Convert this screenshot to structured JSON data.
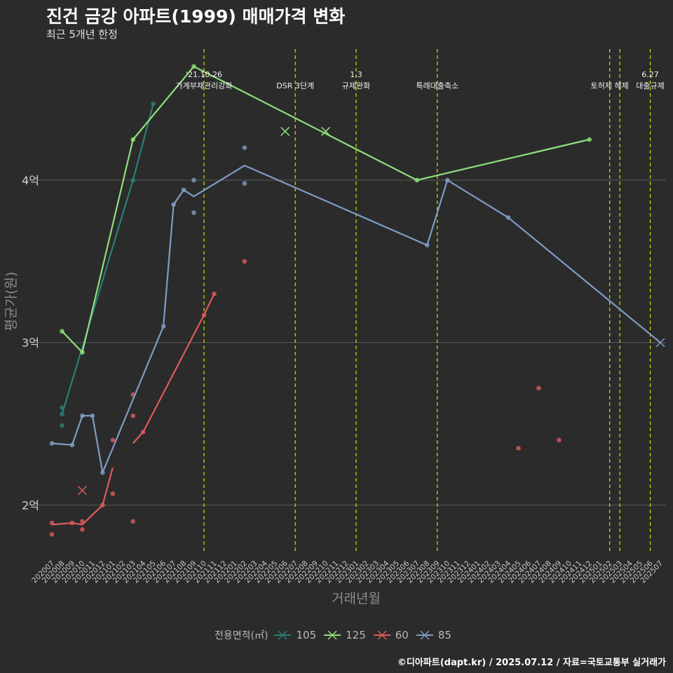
{
  "title": "진건 금강 아파트(1999) 매매가격 변화",
  "subtitle": "최근 5개년 한정",
  "caption": "©디아파트(dapt.kr) / 2025.07.12 / 자료=국토교통부 실거래가",
  "colors": {
    "background": "#2b2b2b",
    "grid": "#5a5a5a",
    "vline": "#d4e000",
    "105": "#2a7f77",
    "125": "#8fdf7a",
    "60": "#e05a5a",
    "85": "#7f9cc4"
  },
  "chart_data": {
    "type": "line",
    "xlabel": "거래년월",
    "ylabel": "평균가(원)",
    "ylim": [
      1.7,
      4.85
    ],
    "yticks": [
      {
        "v": 2,
        "label": "2억"
      },
      {
        "v": 3,
        "label": "3억"
      },
      {
        "v": 4,
        "label": "4억"
      }
    ],
    "months": [
      "202007",
      "202008",
      "202009",
      "202010",
      "202011",
      "202012",
      "202101",
      "202102",
      "202103",
      "202104",
      "202105",
      "202106",
      "202107",
      "202108",
      "202109",
      "202110",
      "202111",
      "202112",
      "202201",
      "202202",
      "202203",
      "202204",
      "202205",
      "202206",
      "202207",
      "202208",
      "202209",
      "202210",
      "202211",
      "202212",
      "202301",
      "202302",
      "202303",
      "202304",
      "202305",
      "202306",
      "202307",
      "202308",
      "202309",
      "202310",
      "202311",
      "202312",
      "202401",
      "202402",
      "202403",
      "202404",
      "202405",
      "202406",
      "202407",
      "202408",
      "202409",
      "202410",
      "202411",
      "202412",
      "202501",
      "202502",
      "202503",
      "202504",
      "202505",
      "202506",
      "202507"
    ],
    "legend_title": "전용면적(㎡)",
    "legend_position": "bottom",
    "events": [
      {
        "month": "202110",
        "labels": [
          "'21.10.26",
          "가계부채관리강화"
        ]
      },
      {
        "month": "202207",
        "labels": [
          "DSR 3단계"
        ]
      },
      {
        "month": "202301",
        "labels": [
          "1.3",
          "규제완화"
        ]
      },
      {
        "month": "202309",
        "labels": [
          "특례대출축소"
        ]
      },
      {
        "month": "202502",
        "labels": [
          "토허제 해제"
        ]
      },
      {
        "month": "202503",
        "labels": []
      },
      {
        "month": "202506",
        "labels": [
          "6.27",
          "대출규제"
        ]
      }
    ],
    "series": [
      {
        "name": "105",
        "line": [
          [
            "202008",
            2.56
          ],
          [
            "202103",
            4.0
          ],
          [
            "202105",
            4.47
          ]
        ],
        "points": [
          [
            "202008",
            2.49
          ],
          [
            "202008",
            2.56
          ],
          [
            "202008",
            2.6
          ],
          [
            "202103",
            4.0
          ],
          [
            "202105",
            4.47
          ]
        ],
        "crosses": []
      },
      {
        "name": "125",
        "line": [
          [
            "202008",
            3.07
          ],
          [
            "202010",
            2.94
          ],
          [
            "202103",
            4.25
          ],
          [
            "202109",
            4.7
          ],
          [
            "202307",
            4.0
          ],
          [
            "202412",
            4.25
          ]
        ],
        "points": [
          [
            "202008",
            3.07
          ],
          [
            "202010",
            2.94
          ],
          [
            "202103",
            4.25
          ],
          [
            "202109",
            4.7
          ],
          [
            "202307",
            4.0
          ],
          [
            "202412",
            4.25
          ]
        ],
        "crosses": [
          [
            "202206",
            4.3
          ],
          [
            "202210",
            4.3
          ]
        ]
      },
      {
        "name": "60",
        "line_segments": [
          [
            [
              "202007",
              1.88
            ],
            [
              "202009",
              1.89
            ],
            [
              "202010",
              1.88
            ],
            [
              "202012",
              2.0
            ],
            [
              "202101",
              2.23
            ]
          ],
          [
            [
              "202103",
              2.38
            ],
            [
              "202104",
              2.45
            ],
            [
              "202110",
              3.17
            ],
            [
              "202111",
              3.3
            ]
          ]
        ],
        "points": [
          [
            "202007",
            1.82
          ],
          [
            "202007",
            1.89
          ],
          [
            "202009",
            1.89
          ],
          [
            "202010",
            1.85
          ],
          [
            "202010",
            1.9
          ],
          [
            "202012",
            2.0
          ],
          [
            "202101",
            2.07
          ],
          [
            "202101",
            2.4
          ],
          [
            "202103",
            1.9
          ],
          [
            "202103",
            2.55
          ],
          [
            "202103",
            2.68
          ],
          [
            "202104",
            2.45
          ],
          [
            "202110",
            3.17
          ],
          [
            "202111",
            3.3
          ],
          [
            "202202",
            3.5
          ],
          [
            "202405",
            2.35
          ],
          [
            "202407",
            2.72
          ],
          [
            "202409",
            2.4
          ]
        ],
        "crosses": [
          [
            "202010",
            2.09
          ]
        ]
      },
      {
        "name": "85",
        "line": [
          [
            "202007",
            2.38
          ],
          [
            "202009",
            2.37
          ],
          [
            "202010",
            2.55
          ],
          [
            "202011",
            2.55
          ],
          [
            "202012",
            2.2
          ],
          [
            "202106",
            3.1
          ],
          [
            "202107",
            3.85
          ],
          [
            "202108",
            3.94
          ],
          [
            "202109",
            3.9
          ],
          [
            "202202",
            4.09
          ],
          [
            "202308",
            3.6
          ],
          [
            "202310",
            4.0
          ],
          [
            "202404",
            3.77
          ],
          [
            "202507",
            3.0
          ]
        ],
        "points": [
          [
            "202007",
            2.38
          ],
          [
            "202009",
            2.37
          ],
          [
            "202010",
            2.55
          ],
          [
            "202011",
            2.55
          ],
          [
            "202012",
            2.2
          ],
          [
            "202106",
            3.1
          ],
          [
            "202107",
            3.85
          ],
          [
            "202108",
            3.94
          ],
          [
            "202109",
            3.8
          ],
          [
            "202109",
            4.0
          ],
          [
            "202202",
            3.98
          ],
          [
            "202202",
            4.2
          ],
          [
            "202308",
            3.6
          ],
          [
            "202310",
            4.0
          ],
          [
            "202404",
            3.77
          ]
        ],
        "crosses": [
          [
            "202507",
            3.0
          ]
        ]
      }
    ]
  }
}
